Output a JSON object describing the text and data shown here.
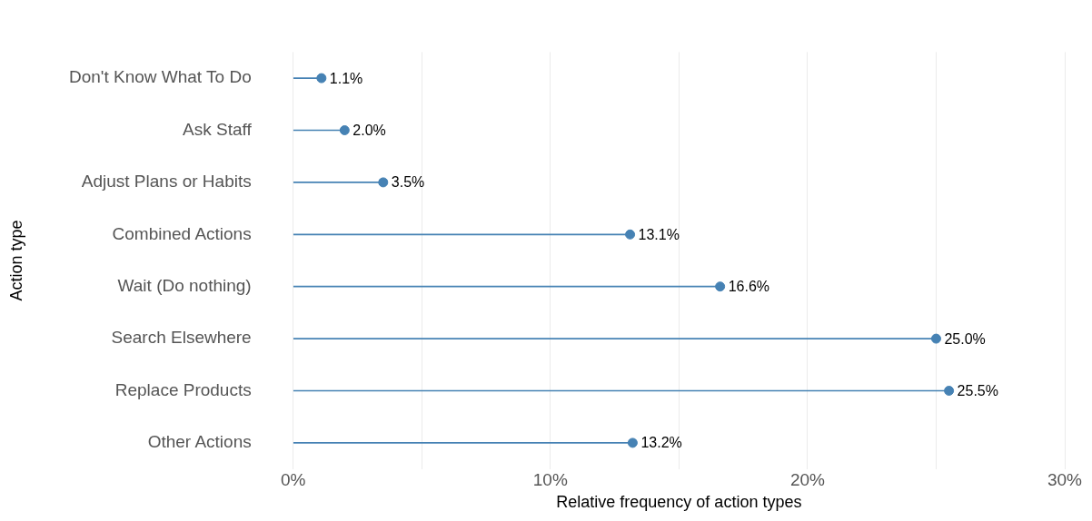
{
  "chart_data": {
    "type": "lollipop",
    "orientation": "horizontal",
    "xlabel": "Relative frequency of action types",
    "ylabel": "Action type",
    "categories": [
      "Don't Know What To Do",
      "Ask Staff",
      "Adjust Plans or Habits",
      "Combined Actions",
      "Wait (Do nothing)",
      "Search Elsewhere",
      "Replace Products",
      "Other Actions"
    ],
    "values": [
      1.1,
      2.0,
      3.5,
      13.1,
      16.6,
      25.0,
      25.5,
      13.2
    ],
    "value_labels": [
      "1.1%",
      "2.0%",
      "3.5%",
      "13.1%",
      "16.6%",
      "25.0%",
      "25.5%",
      "13.2%"
    ],
    "color": "#4682b4",
    "marker": "circle",
    "grid": "x",
    "legend": false,
    "xlim": [
      0,
      30
    ],
    "xticks": [
      {
        "value": 0,
        "label": "0%"
      },
      {
        "value": 5,
        "label": null
      },
      {
        "value": 10,
        "label": "10%"
      },
      {
        "value": 15,
        "label": null
      },
      {
        "value": 20,
        "label": "20%"
      },
      {
        "value": 25,
        "label": null
      },
      {
        "value": 30,
        "label": "30%"
      }
    ]
  }
}
